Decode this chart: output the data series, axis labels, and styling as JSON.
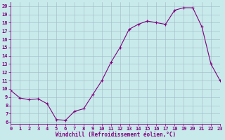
{
  "x": [
    0,
    1,
    2,
    3,
    4,
    5,
    6,
    7,
    8,
    9,
    10,
    11,
    12,
    13,
    14,
    15,
    16,
    17,
    18,
    19,
    20,
    21,
    22,
    23
  ],
  "y": [
    9.8,
    8.9,
    8.7,
    8.8,
    8.2,
    6.3,
    6.2,
    7.3,
    7.6,
    9.3,
    11.0,
    13.2,
    15.0,
    17.2,
    17.8,
    18.2,
    18.0,
    17.8,
    19.5,
    19.8,
    19.8,
    17.5,
    13.0,
    11.0
  ],
  "line_color": "#800080",
  "marker_color": "#800080",
  "bg_color": "#c8eaea",
  "grid_color": "#a0b8c8",
  "xlabel": "Windchill (Refroidissement éolien,°C)",
  "xlabel_color": "#800080",
  "ylabel_ticks": [
    6,
    7,
    8,
    9,
    10,
    11,
    12,
    13,
    14,
    15,
    16,
    17,
    18,
    19,
    20
  ],
  "xlim": [
    0,
    23
  ],
  "ylim": [
    5.8,
    20.5
  ],
  "tick_color": "#800080",
  "axis_color": "#800080",
  "tick_fontsize": 5.0,
  "xlabel_fontsize": 5.5
}
